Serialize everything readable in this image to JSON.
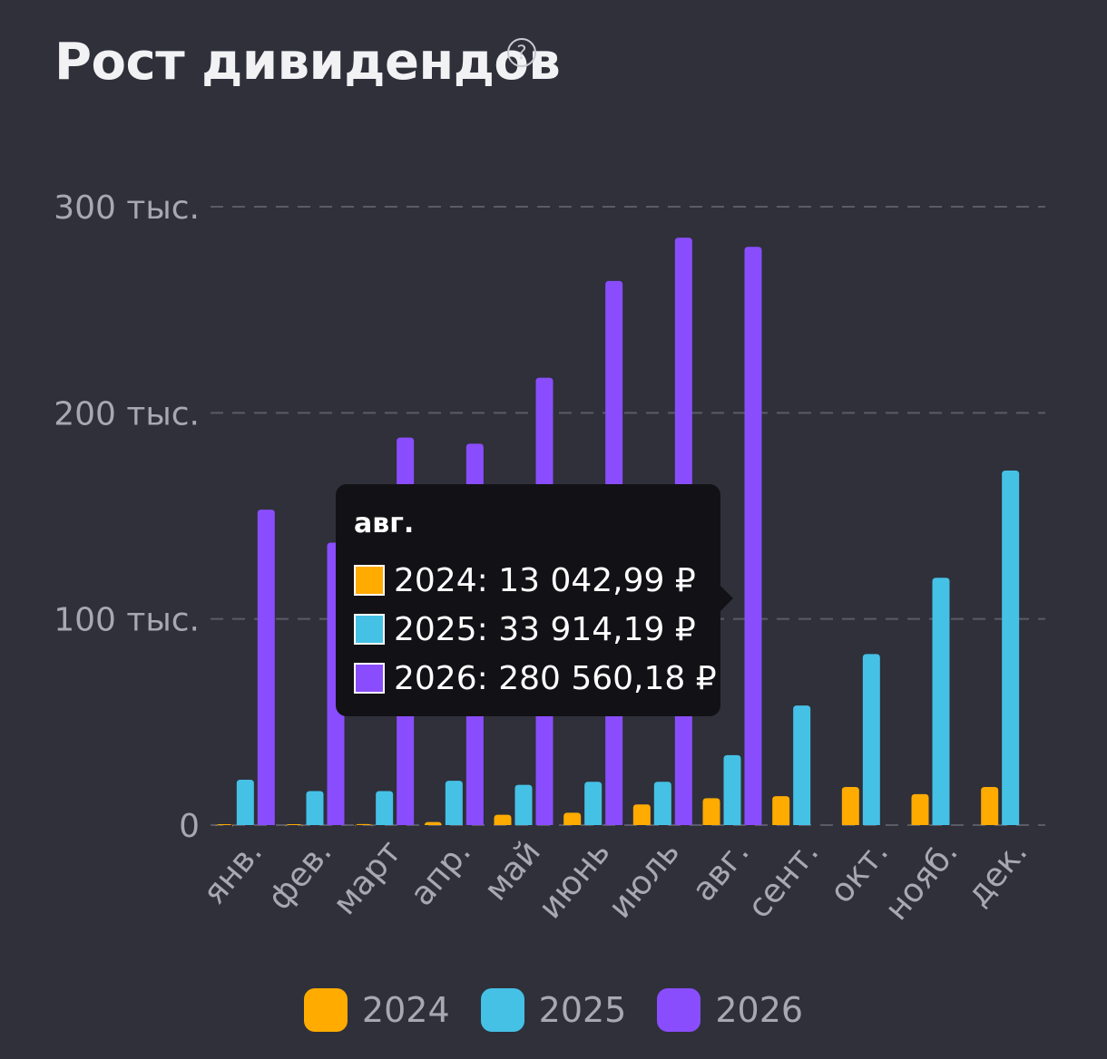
{
  "header": {
    "title": "Рост дивидендов",
    "help_icon": "?"
  },
  "chart_data": {
    "type": "bar",
    "categories": [
      "янв.",
      "фев.",
      "март",
      "апр.",
      "май",
      "июнь",
      "июль",
      "авг.",
      "сент.",
      "окт.",
      "нояб.",
      "дек."
    ],
    "series": [
      {
        "name": "2024",
        "color": "#ffab00",
        "values": [
          300,
          400,
          500,
          1500,
          5000,
          6000,
          10000,
          13042.99,
          14000,
          18500,
          15000,
          18500
        ]
      },
      {
        "name": "2025",
        "color": "#45c1e6",
        "values": [
          22000,
          16500,
          16500,
          21500,
          19500,
          21000,
          21000,
          33914.19,
          58000,
          83000,
          120000,
          172000
        ]
      },
      {
        "name": "2026",
        "color": "#8a4dfd",
        "values": [
          153000,
          137000,
          188000,
          185000,
          217000,
          264000,
          285000,
          280560.18,
          null,
          null,
          null,
          null
        ]
      }
    ],
    "y_ticks": [
      {
        "value": 0,
        "label": "0"
      },
      {
        "value": 100000,
        "label": "100 тыс."
      },
      {
        "value": 200000,
        "label": "200 тыс."
      },
      {
        "value": 300000,
        "label": "300 тыс."
      }
    ],
    "ylim": [
      0,
      300000
    ],
    "grid": true,
    "legend_position": "bottom"
  },
  "tooltip": {
    "title": "авг.",
    "rows": [
      {
        "label": "2024: 13 042,99 ₽",
        "color": "#ffab00"
      },
      {
        "label": "2025: 33 914,19 ₽",
        "color": "#45c1e6"
      },
      {
        "label": "2026: 280 560,18 ₽",
        "color": "#8a4dfd"
      }
    ]
  },
  "legend": [
    {
      "label": "2024",
      "color": "#ffab00"
    },
    {
      "label": "2025",
      "color": "#45c1e6"
    },
    {
      "label": "2026",
      "color": "#8a4dfd"
    }
  ]
}
